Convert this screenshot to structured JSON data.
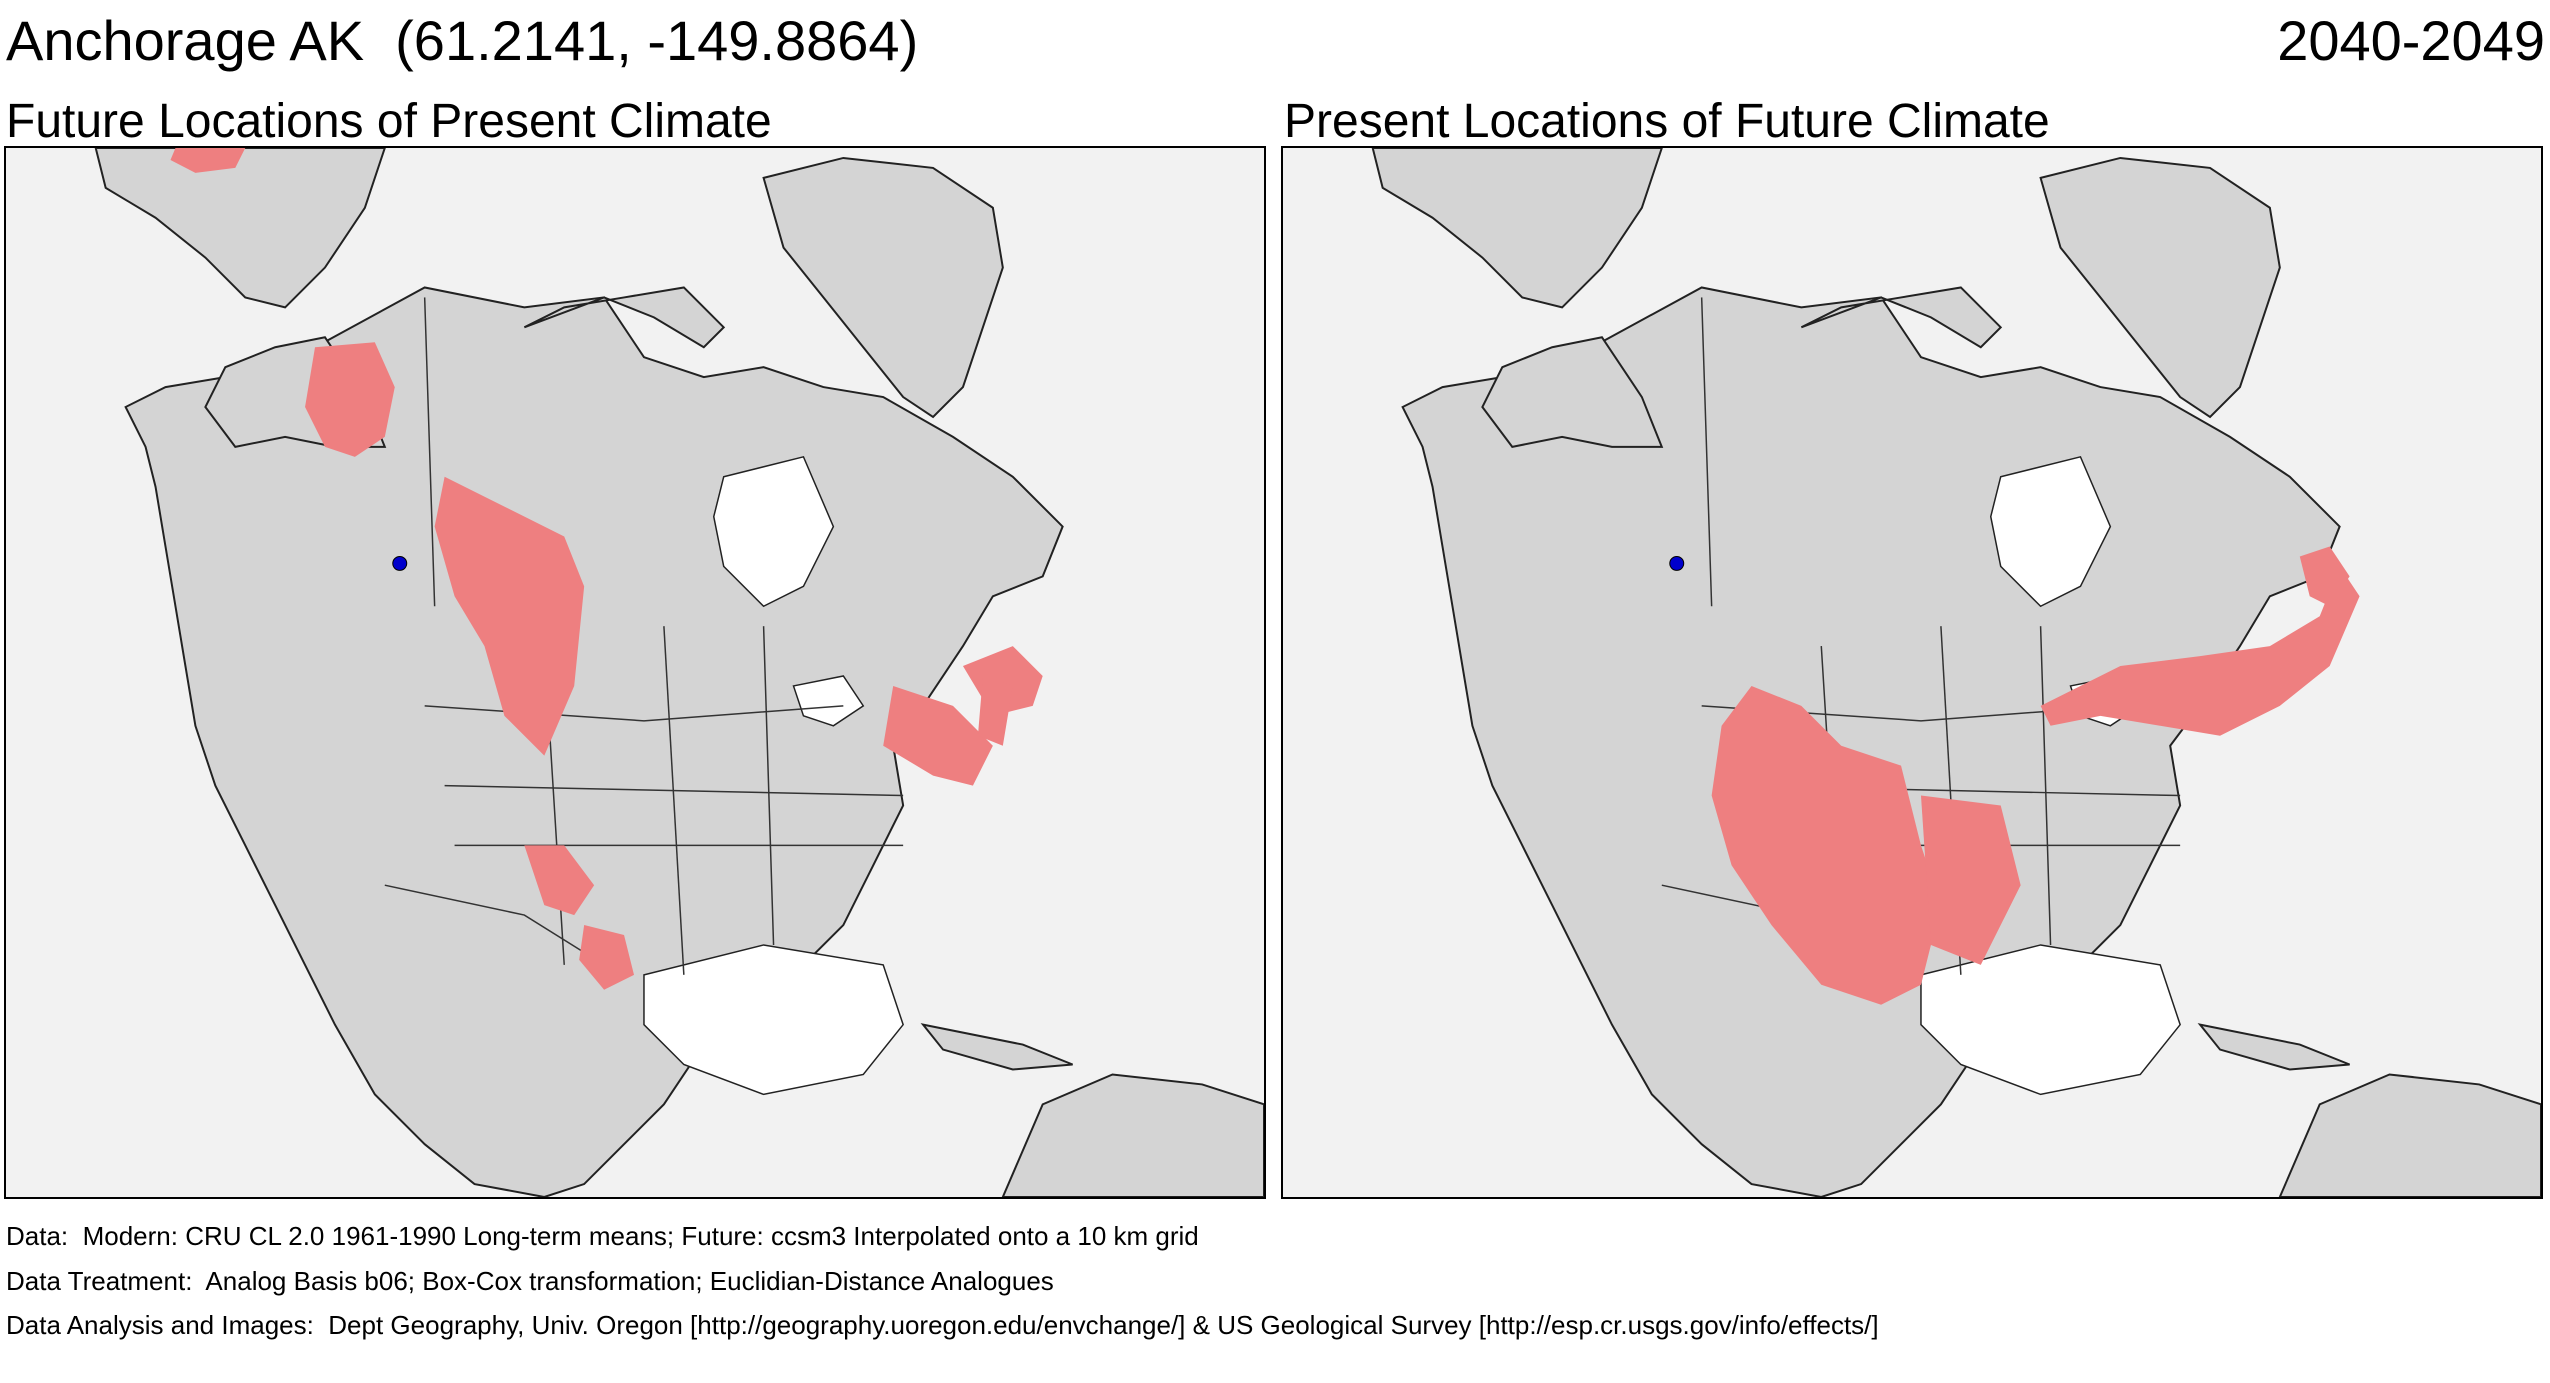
{
  "header": {
    "location": "Anchorage AK  (61.2141, -149.8864)",
    "period": "2040-2049"
  },
  "panels": [
    {
      "title": "Future Locations of Present Climate"
    },
    {
      "title": "Present Locations of Future Climate"
    }
  ],
  "footer": {
    "data": "Data:  Modern: CRU CL 2.0 1961-1990 Long-term means; Future: ccsm3 Interpolated onto a 10 km grid",
    "treatment": "Data Treatment:  Analog Basis b06; Box-Cox transformation; Euclidian-Distance Analogues",
    "analysis": "Data Analysis and Images:  Dept Geography, Univ. Oregon [http://geography.uoregon.edu/envchange/] & US Geological Survey [http://esp.cr.usgs.gov/info/effects/]"
  },
  "colors": {
    "analog": "#ee7f80",
    "site": "#0000cc",
    "land": "#d6d6d6",
    "water": "#f2f2f2",
    "ocean_lakes": "#ffffff"
  }
}
